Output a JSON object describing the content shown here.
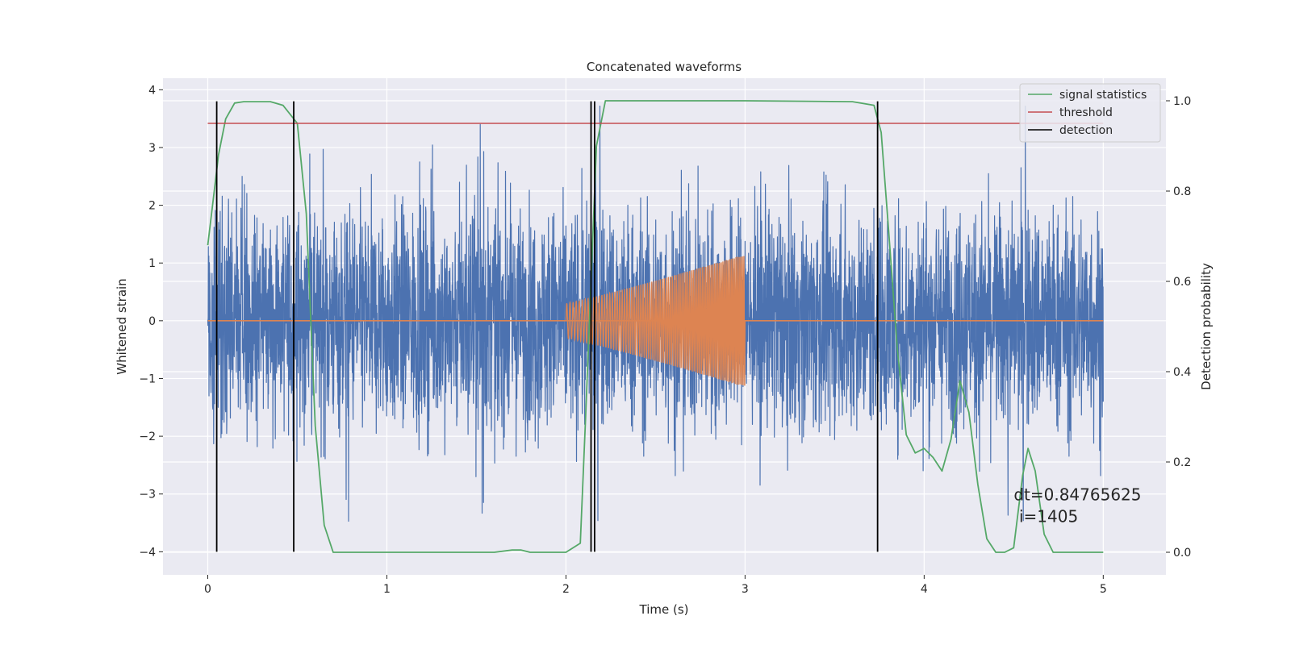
{
  "chart_data": {
    "type": "line",
    "title": "Concatenated waveforms",
    "xlabel": "Time (s)",
    "ylabel": "Whitened strain",
    "y2label": "Detection probability",
    "xlim": [
      -0.25,
      5.35
    ],
    "ylim": [
      -4.4,
      4.2
    ],
    "y2lim": [
      -0.05,
      1.05
    ],
    "x_ticks": [
      0,
      1,
      2,
      3,
      4,
      5
    ],
    "y_ticks": [
      -4,
      -3,
      -2,
      -1,
      0,
      1,
      2,
      3,
      4
    ],
    "y2_ticks": [
      0.0,
      0.2,
      0.4,
      0.6,
      0.8,
      1.0
    ],
    "x_tick_labels": [
      "0",
      "1",
      "2",
      "3",
      "4",
      "5"
    ],
    "y_tick_labels": [
      "−4",
      "−3",
      "−2",
      "−1",
      "0",
      "1",
      "2",
      "3",
      "4"
    ],
    "y2_tick_labels": [
      "0.0",
      "0.2",
      "0.4",
      "0.6",
      "0.8",
      "1.0"
    ],
    "grid": true,
    "legend_position": "top-right",
    "legend": [
      {
        "label": "signal statistics",
        "color": "#55a868"
      },
      {
        "label": "threshold",
        "color": "#c44e52"
      },
      {
        "label": "detection",
        "color": "#000000"
      }
    ],
    "series": [
      {
        "role": "noise strain",
        "axis": "left",
        "color": "#4c72b0",
        "x_range": [
          0,
          5
        ],
        "amplitude_typical": 1.0,
        "peak_max": 3.8,
        "peak_min": -4.0
      },
      {
        "role": "injected chirp",
        "axis": "left",
        "color": "#dd8452",
        "x_range": [
          2,
          3
        ],
        "amplitude_start": 0.3,
        "amplitude_end": 1.15,
        "baseline": 0
      },
      {
        "name": "signal statistics",
        "axis": "right",
        "color": "#55a868",
        "x": [
          0,
          0.03,
          0.06,
          0.1,
          0.15,
          0.2,
          0.35,
          0.42,
          0.5,
          0.55,
          0.6,
          0.65,
          0.7,
          0.75,
          1.0,
          1.6,
          1.7,
          1.75,
          1.8,
          2.0,
          2.08,
          2.11,
          2.14,
          2.17,
          2.22,
          2.3,
          3.0,
          3.6,
          3.72,
          3.76,
          3.8,
          3.85,
          3.9,
          3.95,
          4.0,
          4.05,
          4.1,
          4.15,
          4.2,
          4.25,
          4.3,
          4.35,
          4.4,
          4.45,
          4.5,
          4.55,
          4.58,
          4.62,
          4.67,
          4.72,
          5.0
        ],
        "y": [
          0.68,
          0.78,
          0.88,
          0.96,
          0.995,
          0.998,
          0.998,
          0.99,
          0.95,
          0.75,
          0.28,
          0.06,
          0.0,
          0.0,
          0.0,
          0.0,
          0.005,
          0.005,
          0.0,
          0.0,
          0.02,
          0.3,
          0.6,
          0.9,
          1.0,
          1.0,
          1.0,
          0.998,
          0.99,
          0.93,
          0.72,
          0.45,
          0.26,
          0.22,
          0.23,
          0.21,
          0.18,
          0.25,
          0.38,
          0.31,
          0.15,
          0.03,
          0.0,
          0.0,
          0.01,
          0.17,
          0.23,
          0.18,
          0.04,
          0.0,
          0.0
        ]
      },
      {
        "name": "threshold",
        "axis": "right",
        "color": "#c44e52",
        "x": [
          0,
          5
        ],
        "y": [
          0.95,
          0.95
        ]
      },
      {
        "name": "detection",
        "axis": "left",
        "color": "#000000",
        "type": "vlines",
        "x": [
          0.05,
          0.48,
          2.14,
          2.16,
          3.74
        ],
        "y_range": [
          -4.0,
          3.8
        ]
      }
    ],
    "annotations": [
      {
        "text": "dt=0.84765625",
        "x": 4.5,
        "y": -3.0
      },
      {
        "text": "i=1405",
        "x": 4.53,
        "y": -3.4
      }
    ]
  }
}
